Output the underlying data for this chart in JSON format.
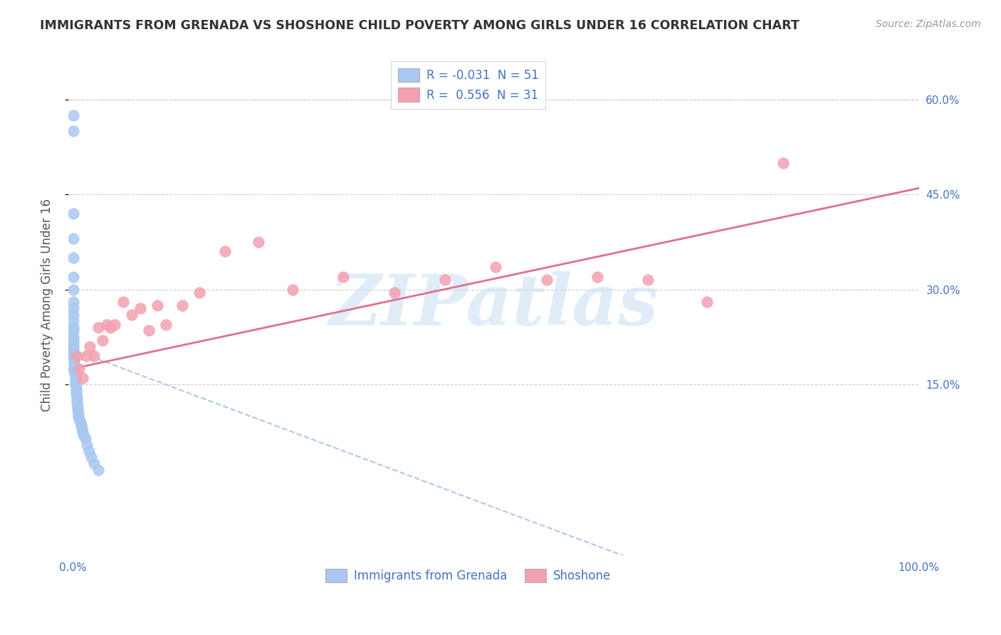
{
  "title": "IMMIGRANTS FROM GRENADA VS SHOSHONE CHILD POVERTY AMONG GIRLS UNDER 16 CORRELATION CHART",
  "source": "Source: ZipAtlas.com",
  "ylabel": "Child Poverty Among Girls Under 16",
  "watermark": "ZIPatlas",
  "xlim": [
    -0.005,
    1.0
  ],
  "ylim": [
    -0.12,
    0.67
  ],
  "xtick_positions": [
    0.0,
    1.0
  ],
  "xtick_labels": [
    "0.0%",
    "100.0%"
  ],
  "ytick_values_right": [
    0.15,
    0.3,
    0.45,
    0.6
  ],
  "ytick_labels_right": [
    "15.0%",
    "30.0%",
    "45.0%",
    "60.0%"
  ],
  "grenada_color": "#a8c8f0",
  "shoshone_color": "#f4a0b0",
  "grenada_line_color": "#b0c8e8",
  "shoshone_line_color": "#e07090",
  "label_color": "#4472c4",
  "R_grenada": -0.031,
  "N_grenada": 51,
  "R_shoshone": 0.556,
  "N_shoshone": 31,
  "grenada_intercept": 0.205,
  "grenada_slope": -0.5,
  "shoshone_intercept": 0.175,
  "shoshone_slope": 0.285,
  "grenada_x": [
    0.001,
    0.001,
    0.001,
    0.001,
    0.001,
    0.001,
    0.001,
    0.001,
    0.001,
    0.001,
    0.001,
    0.001,
    0.001,
    0.001,
    0.001,
    0.001,
    0.001,
    0.001,
    0.001,
    0.001,
    0.002,
    0.002,
    0.002,
    0.002,
    0.002,
    0.003,
    0.003,
    0.003,
    0.003,
    0.004,
    0.004,
    0.004,
    0.005,
    0.005,
    0.005,
    0.006,
    0.006,
    0.007,
    0.007,
    0.008,
    0.009,
    0.01,
    0.011,
    0.012,
    0.013,
    0.015,
    0.017,
    0.019,
    0.022,
    0.025,
    0.03
  ],
  "grenada_y": [
    0.575,
    0.55,
    0.42,
    0.38,
    0.35,
    0.32,
    0.3,
    0.28,
    0.27,
    0.26,
    0.25,
    0.24,
    0.235,
    0.225,
    0.22,
    0.215,
    0.21,
    0.205,
    0.2,
    0.195,
    0.19,
    0.185,
    0.18,
    0.175,
    0.17,
    0.165,
    0.16,
    0.155,
    0.15,
    0.145,
    0.14,
    0.135,
    0.13,
    0.125,
    0.12,
    0.115,
    0.11,
    0.105,
    0.1,
    0.095,
    0.09,
    0.085,
    0.08,
    0.075,
    0.07,
    0.065,
    0.055,
    0.045,
    0.035,
    0.025,
    0.015
  ],
  "shoshone_x": [
    0.005,
    0.008,
    0.012,
    0.016,
    0.02,
    0.025,
    0.03,
    0.035,
    0.04,
    0.045,
    0.05,
    0.06,
    0.07,
    0.08,
    0.09,
    0.1,
    0.11,
    0.13,
    0.15,
    0.18,
    0.22,
    0.26,
    0.32,
    0.38,
    0.44,
    0.5,
    0.56,
    0.62,
    0.68,
    0.75,
    0.84
  ],
  "shoshone_y": [
    0.195,
    0.175,
    0.16,
    0.195,
    0.21,
    0.195,
    0.24,
    0.22,
    0.245,
    0.24,
    0.245,
    0.28,
    0.26,
    0.27,
    0.235,
    0.275,
    0.245,
    0.275,
    0.295,
    0.36,
    0.375,
    0.3,
    0.32,
    0.295,
    0.315,
    0.335,
    0.315,
    0.32,
    0.315,
    0.28,
    0.5
  ]
}
